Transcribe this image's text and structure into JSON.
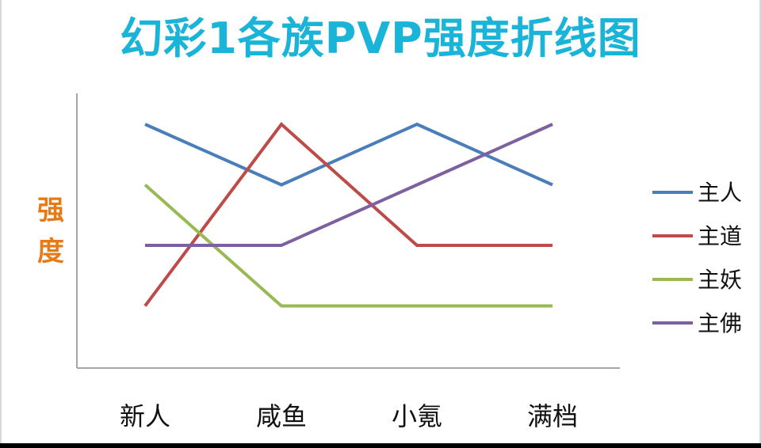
{
  "chart_data": {
    "type": "line",
    "title": "幻彩1各族PVP强度折线图",
    "ylabel": "强度",
    "xlabel": "",
    "categories": [
      "新人",
      "咸鱼",
      "小氪",
      "满档"
    ],
    "ylim": [
      0,
      5
    ],
    "grid": false,
    "legend_position": "right",
    "series": [
      {
        "name": "主人",
        "color": "#4a7ebb",
        "values": [
          4,
          3,
          4,
          3
        ]
      },
      {
        "name": "主道",
        "color": "#be4b48",
        "values": [
          1,
          4,
          2,
          2
        ]
      },
      {
        "name": "主妖",
        "color": "#98b954",
        "values": [
          3,
          1,
          1,
          1
        ]
      },
      {
        "name": "主佛",
        "color": "#7d60a0",
        "values": [
          2,
          2,
          3,
          4
        ]
      }
    ]
  }
}
